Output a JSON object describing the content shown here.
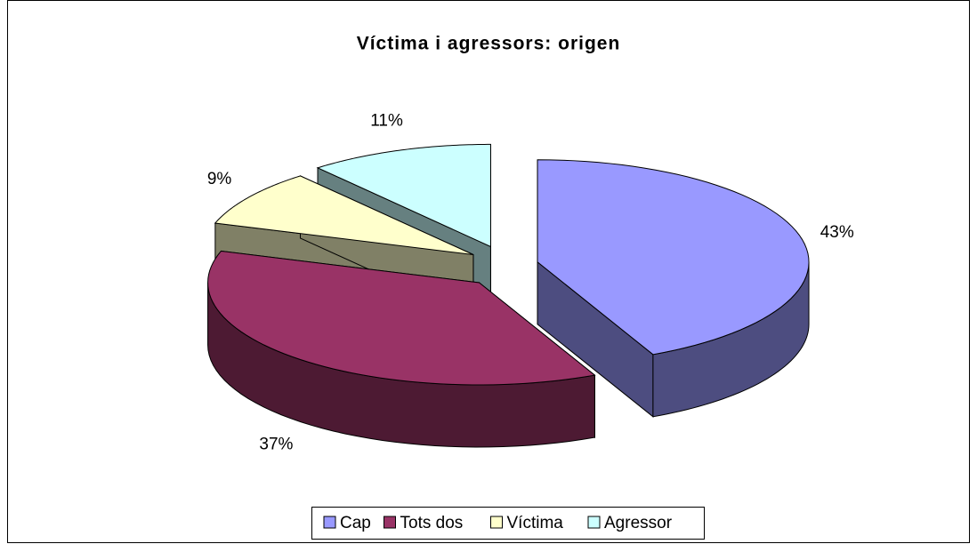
{
  "chart_data": {
    "type": "pie",
    "title": "Víctima i agressors: origen",
    "categories": [
      "Cap",
      "Tots dos",
      "Víctima",
      "Agressor"
    ],
    "values": [
      43,
      37,
      9,
      11
    ],
    "value_labels": [
      "43%",
      "37%",
      "9%",
      "11%"
    ],
    "colors": [
      "#9999ff",
      "#993366",
      "#ffffcc",
      "#ccffff"
    ],
    "legend": "bottom"
  }
}
